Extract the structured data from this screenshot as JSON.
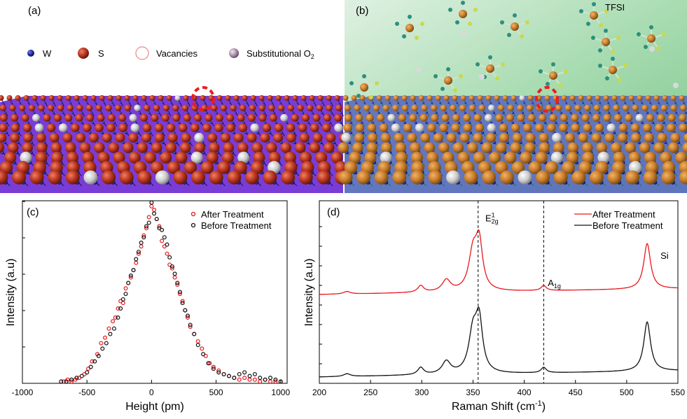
{
  "panels": {
    "a": {
      "label": "(a)",
      "legend": [
        "W",
        "S",
        "Vacancies"
      ],
      "legend_o2": {
        "base": "Substitutional O",
        "sub": "2"
      }
    },
    "b": {
      "label": "(b)",
      "molecule_label": "TFSI"
    }
  },
  "colors": {
    "after": "#e8171e",
    "before": "#111111",
    "substrate_a": "#7a3cd6",
    "gel_b": "#9fd4a8",
    "sulfur": "#b8341f",
    "tungsten": "#1f2a8c",
    "oxygen": "#c9c9c9"
  },
  "chart_data": [
    {
      "panel": "(c)",
      "type": "scatter",
      "xlabel": "Height (pm)",
      "ylabel": "Intensity (a.u)",
      "xlim": [
        -1000,
        1050
      ],
      "ylim": [
        0,
        1.0
      ],
      "xticks": [
        -1000,
        -500,
        0,
        500,
        1000
      ],
      "legend": [
        "After Treatment",
        "Before Treatment"
      ],
      "series": [
        {
          "name": "After Treatment",
          "x": [
            -680,
            -650,
            -620,
            -590,
            -560,
            -520,
            -490,
            -460,
            -420,
            -390,
            -360,
            -330,
            -300,
            -280,
            -260,
            -240,
            -220,
            -200,
            -180,
            -160,
            -140,
            -120,
            -100,
            -80,
            -60,
            -40,
            -20,
            0,
            20,
            40,
            60,
            80,
            100,
            120,
            140,
            160,
            180,
            200,
            220,
            240,
            260,
            280,
            300,
            330,
            360,
            390,
            420,
            450,
            480,
            520,
            560,
            600,
            640,
            680,
            720,
            760,
            800,
            840,
            880,
            920,
            960,
            1000
          ],
          "y": [
            0.01,
            0.02,
            0.01,
            0.02,
            0.03,
            0.05,
            0.08,
            0.12,
            0.16,
            0.22,
            0.25,
            0.3,
            0.34,
            0.36,
            0.41,
            0.45,
            0.44,
            0.52,
            0.55,
            0.58,
            0.62,
            0.66,
            0.71,
            0.75,
            0.81,
            0.85,
            0.91,
            0.97,
            0.95,
            0.9,
            0.86,
            0.78,
            0.75,
            0.71,
            0.65,
            0.63,
            0.58,
            0.54,
            0.49,
            0.45,
            0.4,
            0.36,
            0.31,
            0.27,
            0.23,
            0.19,
            0.15,
            0.11,
            0.09,
            0.07,
            0.05,
            0.04,
            0.03,
            0.02,
            0.03,
            0.02,
            0.02,
            0.01,
            0.02,
            0.01,
            0.01,
            0.01
          ]
        },
        {
          "name": "Before Treatment",
          "x": [
            -700,
            -660,
            -620,
            -580,
            -540,
            -500,
            -470,
            -440,
            -410,
            -380,
            -350,
            -320,
            -290,
            -260,
            -240,
            -220,
            -200,
            -180,
            -160,
            -140,
            -120,
            -100,
            -80,
            -60,
            -40,
            -20,
            0,
            20,
            40,
            60,
            80,
            100,
            120,
            140,
            160,
            180,
            200,
            220,
            240,
            260,
            280,
            300,
            330,
            360,
            400,
            440,
            480,
            520,
            560,
            600,
            640,
            680,
            720,
            760,
            800,
            840,
            880,
            920,
            960,
            1000
          ],
          "y": [
            0.01,
            0.01,
            0.02,
            0.03,
            0.04,
            0.06,
            0.09,
            0.12,
            0.15,
            0.19,
            0.22,
            0.27,
            0.3,
            0.36,
            0.41,
            0.46,
            0.49,
            0.55,
            0.59,
            0.62,
            0.68,
            0.72,
            0.77,
            0.8,
            0.86,
            0.88,
            0.99,
            0.93,
            0.9,
            0.85,
            0.84,
            0.8,
            0.76,
            0.69,
            0.64,
            0.6,
            0.55,
            0.5,
            0.44,
            0.4,
            0.37,
            0.32,
            0.27,
            0.21,
            0.16,
            0.11,
            0.08,
            0.06,
            0.05,
            0.04,
            0.03,
            0.05,
            0.06,
            0.04,
            0.05,
            0.03,
            0.02,
            0.03,
            0.02,
            0.01
          ]
        }
      ]
    },
    {
      "panel": "(d)",
      "type": "line",
      "xlabel": "Raman Shift (cm",
      "xlabel_sup": "-1",
      "xlabel_end": ")",
      "ylabel": "Intensity (a.u)",
      "xlim": [
        200,
        550
      ],
      "ylim": [
        0,
        2.2
      ],
      "xticks": [
        200,
        250,
        300,
        350,
        400,
        450,
        500,
        550
      ],
      "legend": [
        "After Treatment",
        "Before Treatment"
      ],
      "vlines": [
        355,
        419
      ],
      "peaks": [
        {
          "center": 227,
          "width": 4,
          "height": 0.03
        },
        {
          "center": 299,
          "width": 3.5,
          "height": 0.08
        },
        {
          "center": 324,
          "width": 5,
          "height": 0.14
        },
        {
          "center": 350,
          "width": 5,
          "height": 0.45
        },
        {
          "center": 356,
          "width": 4,
          "height": 0.55
        },
        {
          "center": 419,
          "width": 3,
          "height": 0.06
        },
        {
          "center": 520,
          "width": 4,
          "height": 0.55
        }
      ],
      "baseline_slope": 0.0002,
      "series": [
        {
          "name": "After Treatment",
          "offset": 1.0,
          "scale": 1.0
        },
        {
          "name": "Before Treatment",
          "offset": 0.0,
          "scale": 1.08
        }
      ],
      "annotations": [
        {
          "text": "E",
          "sup": "1",
          "sub": "2g",
          "x": 362,
          "y": 1.95
        },
        {
          "text": "A",
          "sub": "1g",
          "x": 423,
          "y": 1.17
        },
        {
          "text": "Si",
          "x": 533,
          "y": 1.5
        }
      ]
    }
  ]
}
